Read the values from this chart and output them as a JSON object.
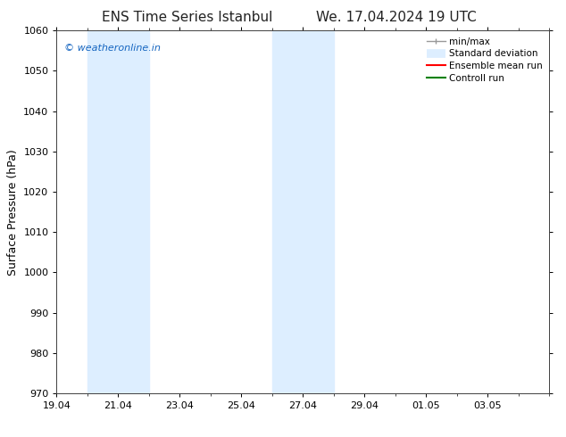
{
  "title_left": "ENS Time Series Istanbul",
  "title_right": "We. 17.04.2024 19 UTC",
  "ylabel": "Surface Pressure (hPa)",
  "ylim": [
    970,
    1060
  ],
  "yticks": [
    970,
    980,
    990,
    1000,
    1010,
    1020,
    1030,
    1040,
    1050,
    1060
  ],
  "xtick_labels": [
    "19.04",
    "21.04",
    "23.04",
    "25.04",
    "27.04",
    "29.04",
    "01.05",
    "03.05"
  ],
  "xtick_positions": [
    0,
    2,
    4,
    6,
    8,
    10,
    12,
    14
  ],
  "xlim": [
    0,
    16
  ],
  "shade_regions": [
    {
      "x_start": 1.0,
      "x_end": 2.0,
      "color": "#ddeeff"
    },
    {
      "x_start": 2.0,
      "x_end": 3.0,
      "color": "#ddeeff"
    },
    {
      "x_start": 7.0,
      "x_end": 8.0,
      "color": "#ddeeff"
    },
    {
      "x_start": 8.0,
      "x_end": 9.0,
      "color": "#ddeeff"
    }
  ],
  "watermark": "© weatheronline.in",
  "watermark_color": "#1565c0",
  "legend_items": [
    {
      "label": "min/max",
      "color": "#aaaaaa",
      "lw": 1.2
    },
    {
      "label": "Standard deviation",
      "color": "#ddeeff",
      "lw": 7
    },
    {
      "label": "Ensemble mean run",
      "color": "red",
      "lw": 1.5
    },
    {
      "label": "Controll run",
      "color": "green",
      "lw": 1.5
    }
  ],
  "background_color": "#ffffff",
  "font_family": "DejaVu Sans",
  "title_fontsize": 11,
  "tick_fontsize": 8,
  "ylabel_fontsize": 9,
  "legend_fontsize": 7.5
}
